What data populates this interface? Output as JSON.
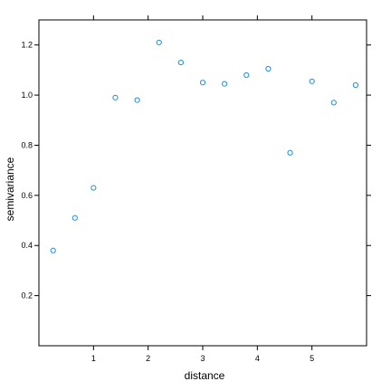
{
  "chart_data": {
    "type": "scatter",
    "xlabel": "distance",
    "ylabel": "semivariance",
    "xlim": [
      0.0,
      6.0
    ],
    "ylim": [
      0.0,
      1.3
    ],
    "x_ticks": [
      1,
      2,
      3,
      4,
      5
    ],
    "x_tick_labels": [
      "1",
      "2",
      "3",
      "4",
      "5"
    ],
    "y_ticks": [
      0.2,
      0.4,
      0.6,
      0.8,
      1.0,
      1.2
    ],
    "y_tick_labels": [
      "0.2",
      "0.4",
      "0.6",
      "0.8",
      "1.0",
      "1.2"
    ],
    "grid": false,
    "point_color": "#1f8fd6",
    "points": [
      {
        "x": 0.26,
        "y": 0.38
      },
      {
        "x": 0.66,
        "y": 0.51
      },
      {
        "x": 1.0,
        "y": 0.63
      },
      {
        "x": 1.4,
        "y": 0.99
      },
      {
        "x": 1.8,
        "y": 0.98
      },
      {
        "x": 2.2,
        "y": 1.21
      },
      {
        "x": 2.6,
        "y": 1.13
      },
      {
        "x": 3.0,
        "y": 1.05
      },
      {
        "x": 3.4,
        "y": 1.045
      },
      {
        "x": 3.8,
        "y": 1.08
      },
      {
        "x": 4.2,
        "y": 1.105
      },
      {
        "x": 4.6,
        "y": 0.77
      },
      {
        "x": 5.0,
        "y": 1.055
      },
      {
        "x": 5.4,
        "y": 0.97
      },
      {
        "x": 5.8,
        "y": 1.04
      }
    ]
  }
}
